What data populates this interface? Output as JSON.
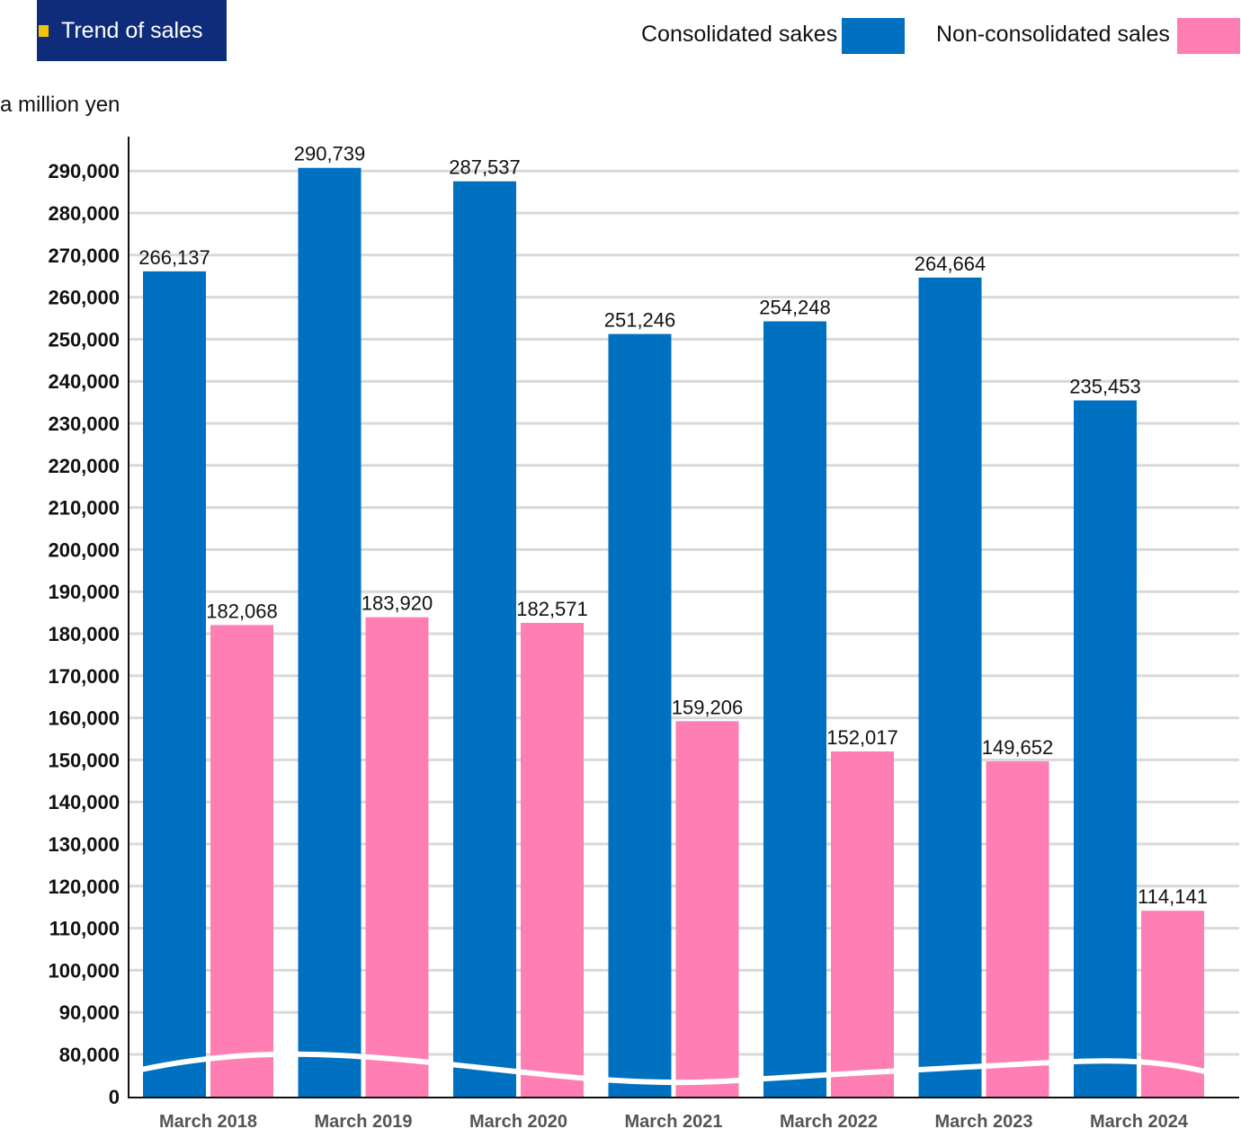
{
  "header": {
    "title": "Trend of sales",
    "unit_label": "a million yen"
  },
  "legend": [
    {
      "label": "Consolidated sakes",
      "color": "#0070c0"
    },
    {
      "label": "Non-consolidated sales",
      "color": "#ff7eb3"
    }
  ],
  "colors": {
    "title_background": "#0f2c7b",
    "title_marker": "#f5c400",
    "gridline": "#d9d9d9"
  },
  "chart_data": {
    "type": "bar",
    "categories": [
      "March 2018",
      "March 2019",
      "March 2020",
      "March 2021",
      "March 2022",
      "March 2023",
      "March 2024"
    ],
    "series": [
      {
        "name": "Consolidated sakes",
        "color": "#0070c0",
        "values": [
          266137,
          290739,
          287537,
          251246,
          254248,
          264664,
          235453
        ],
        "labels": [
          "266,137",
          "290,739",
          "287,537",
          "251,246",
          "254,248",
          "264,664",
          "235,453"
        ]
      },
      {
        "name": "Non-consolidated sales",
        "color": "#ff7eb3",
        "values": [
          182068,
          183920,
          182571,
          159206,
          152017,
          149652,
          114141
        ],
        "labels": [
          "182,068",
          "183,920",
          "182,571",
          "159,206",
          "152,017",
          "149,652",
          "114,141"
        ]
      }
    ],
    "yticks": [
      0,
      80000,
      90000,
      100000,
      110000,
      120000,
      130000,
      140000,
      150000,
      160000,
      170000,
      180000,
      190000,
      200000,
      210000,
      220000,
      230000,
      240000,
      250000,
      260000,
      270000,
      280000,
      290000
    ],
    "ytick_labels": [
      "0",
      "80,000",
      "90,000",
      "100,000",
      "110,000",
      "120,000",
      "130,000",
      "140,000",
      "150,000",
      "160,000",
      "170,000",
      "180,000",
      "190,000",
      "200,000",
      "210,000",
      "220,000",
      "230,000",
      "240,000",
      "250,000",
      "260,000",
      "270,000",
      "280,000",
      "290,000"
    ],
    "ylabel": "a million yen",
    "ylim": [
      0,
      300000
    ],
    "axis_break": "between 0 and 80,000",
    "grid": true,
    "legend_position": "top-right"
  }
}
